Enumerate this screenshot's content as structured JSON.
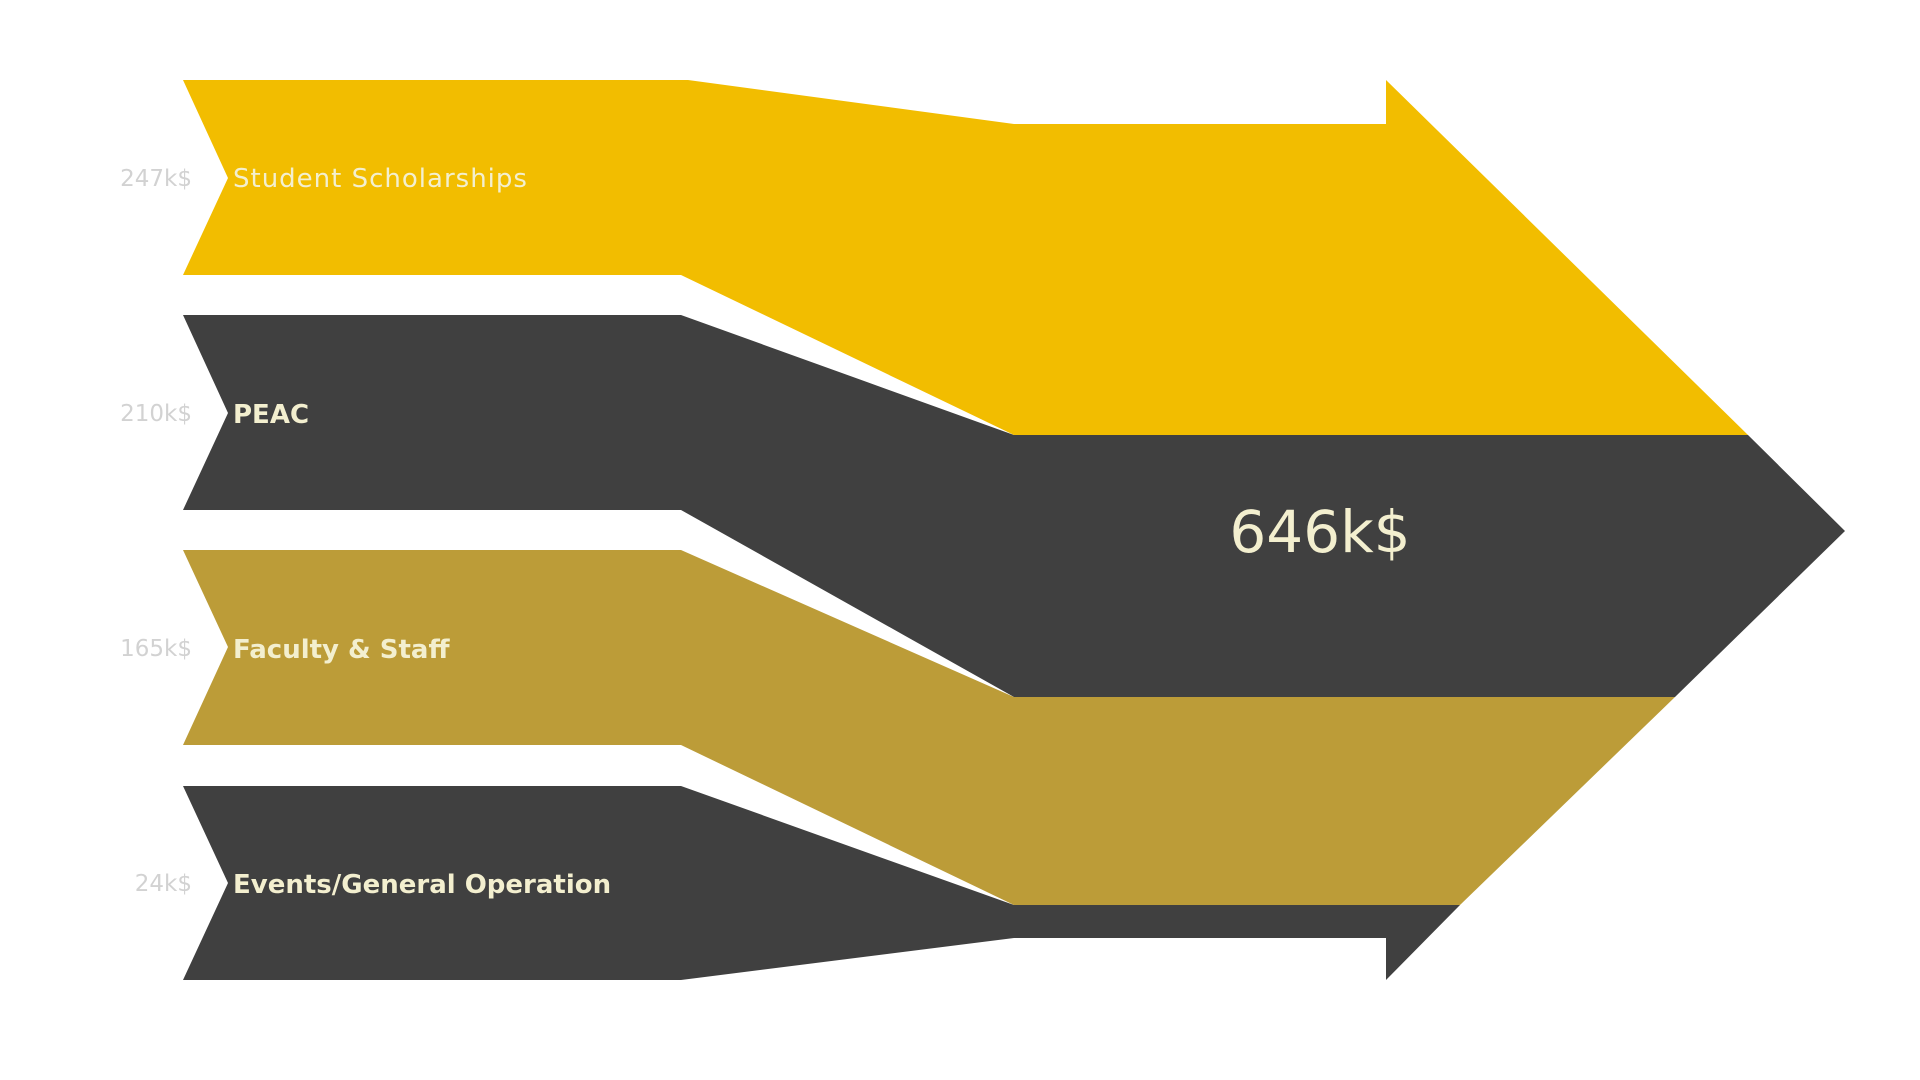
{
  "colors": {
    "gold": "#f2bd00",
    "dark": "#404040",
    "olive": "#bc9c38",
    "label_text": "#f3efcf",
    "amount_text": "#d2d2d2"
  },
  "sources": [
    {
      "amount": "247k$",
      "label": "Student Scholarships",
      "color": "#f2bd00"
    },
    {
      "amount": "210k$",
      "label": "PEAC",
      "color": "#404040"
    },
    {
      "amount": "165k$",
      "label": "Faculty & Staff",
      "color": "#bc9c38"
    },
    {
      "amount": "24k$",
      "label": "Events/General Operation",
      "color": "#404040"
    }
  ],
  "total": {
    "label": "646k$"
  }
}
